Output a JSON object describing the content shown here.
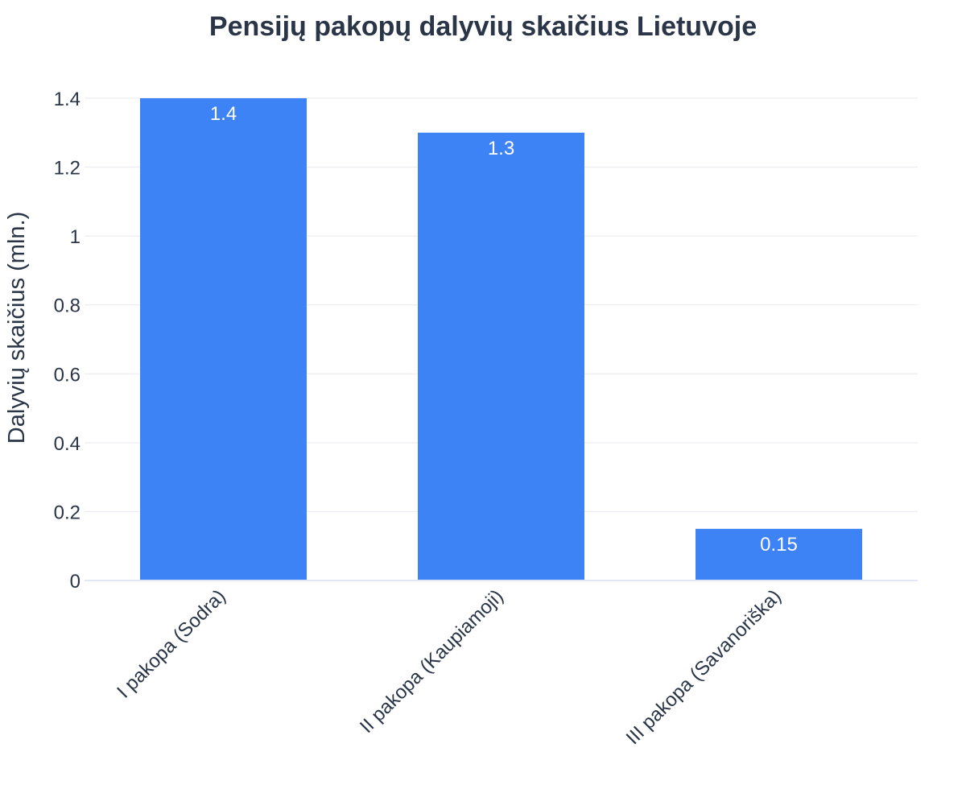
{
  "chart_data": {
    "type": "bar",
    "title": "Pensijų pakopų dalyvių skaičius Lietuvoje",
    "xlabel": "",
    "ylabel": "Dalyvių skaičius (mln.)",
    "categories": [
      "I pakopa (Sodra)",
      "II pakopa (Kaupiamoji)",
      "III pakopa (Savanoriška)"
    ],
    "values": [
      1.4,
      1.3,
      0.15
    ],
    "value_labels": [
      "1.4",
      "1.3",
      "0.15"
    ],
    "ylim": [
      0,
      1.4
    ],
    "yticks": [
      0,
      0.2,
      0.4,
      0.6,
      0.8,
      1.0,
      1.2,
      1.4
    ],
    "ytick_labels": [
      "0",
      "0.2",
      "0.4",
      "0.6",
      "0.8",
      "1",
      "1.2",
      "1.4"
    ],
    "grid": true,
    "legend": "none",
    "bar_color": "#3e83f5",
    "text_color": "#2a3548",
    "label_color": "#ffffff"
  }
}
